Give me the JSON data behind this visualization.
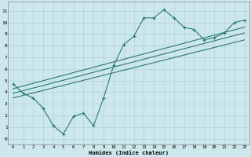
{
  "xlabel": "Humidex (Indice chaleur)",
  "ylabel": "",
  "bg_color": "#cce8ec",
  "grid_color": "#b8d4d8",
  "line_color": "#2a7a6a",
  "xlim": [
    -0.5,
    23.5
  ],
  "ylim": [
    -0.5,
    11.8
  ],
  "xticks": [
    0,
    1,
    2,
    3,
    4,
    5,
    6,
    7,
    8,
    9,
    10,
    11,
    12,
    13,
    14,
    15,
    16,
    17,
    18,
    19,
    20,
    21,
    22,
    23
  ],
  "yticks": [
    0,
    1,
    2,
    3,
    4,
    5,
    6,
    7,
    8,
    9,
    10,
    11
  ],
  "humidex_x": [
    0,
    1,
    2,
    3,
    4,
    5,
    6,
    7,
    8,
    9,
    10,
    11,
    12,
    13,
    14,
    15,
    16,
    17,
    18,
    19,
    20,
    21,
    22,
    23
  ],
  "humidex_y": [
    4.7,
    3.9,
    3.5,
    2.6,
    1.1,
    0.4,
    1.9,
    2.2,
    1.1,
    3.5,
    6.3,
    8.1,
    8.8,
    10.4,
    10.4,
    11.1,
    10.4,
    9.6,
    9.4,
    8.5,
    8.7,
    9.1,
    10.0,
    10.2
  ],
  "reg_lines": [
    {
      "x0": 0,
      "y0": 3.5,
      "x1": 23,
      "y1": 8.5
    },
    {
      "x0": 0,
      "y0": 3.9,
      "x1": 23,
      "y1": 9.1
    },
    {
      "x0": 0,
      "y0": 4.3,
      "x1": 23,
      "y1": 9.6
    }
  ]
}
